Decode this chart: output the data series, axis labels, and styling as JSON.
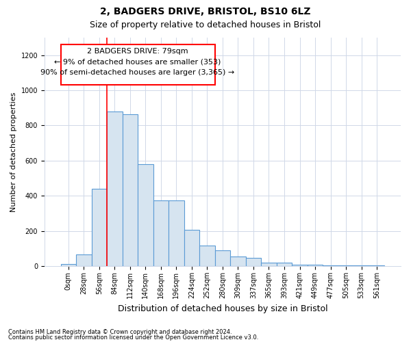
{
  "title_line1": "2, BADGERS DRIVE, BRISTOL, BS10 6LZ",
  "title_line2": "Size of property relative to detached houses in Bristol",
  "xlabel": "Distribution of detached houses by size in Bristol",
  "ylabel": "Number of detached properties",
  "bar_labels": [
    "0sqm",
    "28sqm",
    "56sqm",
    "84sqm",
    "112sqm",
    "140sqm",
    "168sqm",
    "196sqm",
    "224sqm",
    "252sqm",
    "280sqm",
    "309sqm",
    "337sqm",
    "365sqm",
    "393sqm",
    "421sqm",
    "449sqm",
    "477sqm",
    "505sqm",
    "533sqm",
    "561sqm"
  ],
  "bar_values": [
    12,
    65,
    440,
    880,
    865,
    580,
    375,
    375,
    205,
    115,
    90,
    55,
    45,
    20,
    18,
    8,
    8,
    5,
    5,
    5,
    5
  ],
  "bar_color": "#d6e4f0",
  "bar_edge_color": "#5b9bd5",
  "grid_color": "#d0d8e8",
  "annotation_line1": "2 BADGERS DRIVE: 79sqm",
  "annotation_line2": "← 9% of detached houses are smaller (353)",
  "annotation_line3": "90% of semi-detached houses are larger (3,365) →",
  "annotation_box_color": "white",
  "annotation_box_edge": "red",
  "red_line_x": 3,
  "ylim": [
    0,
    1300
  ],
  "yticks": [
    0,
    200,
    400,
    600,
    800,
    1000,
    1200
  ],
  "footnote1": "Contains HM Land Registry data © Crown copyright and database right 2024.",
  "footnote2": "Contains public sector information licensed under the Open Government Licence v3.0.",
  "bg_color": "#ffffff",
  "plot_bg_color": "#ffffff",
  "title1_fontsize": 10,
  "title2_fontsize": 9,
  "ylabel_fontsize": 8,
  "xlabel_fontsize": 9,
  "tick_fontsize": 7,
  "annot_fontsize": 8,
  "footnote_fontsize": 6
}
